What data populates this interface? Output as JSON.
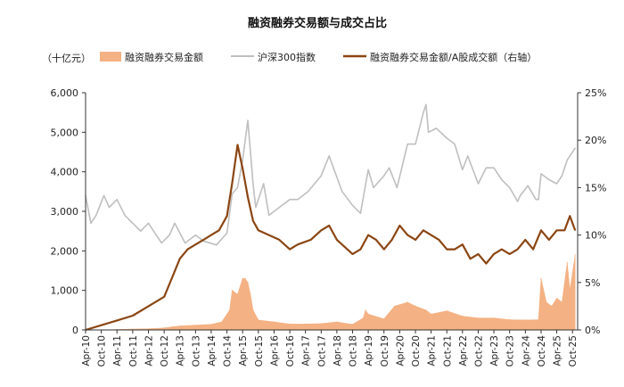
{
  "chart_data": {
    "type": "area",
    "title": "融资融券交易额与成交占比",
    "unit_left": "（十亿元）",
    "x_ticks": [
      "Apr-10",
      "Oct-10",
      "Apr-11",
      "Oct-11",
      "Apr-12",
      "Oct-12",
      "Apr-13",
      "Oct-13",
      "Apr-14",
      "Oct-14",
      "Apr-15",
      "Oct-15",
      "Apr-16",
      "Oct-16",
      "Apr-17",
      "Oct-17",
      "Apr-18",
      "Oct-18",
      "Apr-19",
      "Oct-19",
      "Apr-20",
      "Oct-20",
      "Apr-21",
      "Oct-21",
      "Apr-22",
      "Oct-22",
      "Apr-23",
      "Oct-23",
      "Apr-24",
      "Oct-24",
      "Apr-25",
      "Oct-25"
    ],
    "y_left": {
      "min": 0,
      "max": 6000,
      "ticks": [
        "0",
        "1,000",
        "2,000",
        "3,000",
        "4,000",
        "5,000",
        "6,000"
      ]
    },
    "y_right": {
      "min": 0,
      "max": 25,
      "ticks": [
        "0%",
        "5%",
        "10%",
        "15%",
        "20%",
        "25%"
      ]
    },
    "grid": false,
    "legend_position": "top",
    "series": [
      {
        "name": "融资融券交易金额",
        "type": "area",
        "axis": "left",
        "color": "#f4b183",
        "x": [
          "2010-04",
          "2010-10",
          "2011-04",
          "2011-10",
          "2012-04",
          "2012-10",
          "2013-01",
          "2013-04",
          "2013-10",
          "2014-04",
          "2014-08",
          "2014-11",
          "2014-12",
          "2015-02",
          "2015-04",
          "2015-05",
          "2015-06",
          "2015-07",
          "2015-08",
          "2015-10",
          "2016-04",
          "2016-10",
          "2017-04",
          "2017-10",
          "2018-04",
          "2018-10",
          "2019-02",
          "2019-03",
          "2019-04",
          "2019-10",
          "2020-02",
          "2020-07",
          "2020-10",
          "2021-02",
          "2021-04",
          "2021-10",
          "2022-04",
          "2022-10",
          "2023-04",
          "2023-10",
          "2024-04",
          "2024-09",
          "2024-10",
          "2024-12",
          "2025-02",
          "2025-04",
          "2025-06",
          "2025-08",
          "2025-09",
          "2025-11"
        ],
        "values": [
          0,
          5,
          10,
          20,
          30,
          50,
          80,
          100,
          120,
          140,
          200,
          500,
          1000,
          900,
          1300,
          1300,
          1200,
          900,
          500,
          250,
          200,
          150,
          150,
          160,
          200,
          140,
          300,
          500,
          400,
          280,
          600,
          700,
          600,
          500,
          400,
          480,
          350,
          300,
          300,
          260,
          250,
          260,
          1300,
          700,
          600,
          800,
          700,
          1700,
          1000,
          1900
        ]
      },
      {
        "name": "沪深300指数",
        "type": "line",
        "axis": "left",
        "color": "#bfbfbf",
        "x": [
          "2010-04",
          "2010-06",
          "2010-08",
          "2010-11",
          "2011-01",
          "2011-04",
          "2011-07",
          "2011-10",
          "2012-01",
          "2012-04",
          "2012-07",
          "2012-09",
          "2012-12",
          "2013-02",
          "2013-06",
          "2013-10",
          "2014-01",
          "2014-06",
          "2014-10",
          "2014-12",
          "2015-02",
          "2015-04",
          "2015-06",
          "2015-08",
          "2015-09",
          "2015-12",
          "2016-02",
          "2016-06",
          "2016-10",
          "2017-01",
          "2017-05",
          "2017-10",
          "2018-01",
          "2018-06",
          "2018-10",
          "2019-01",
          "2019-04",
          "2019-06",
          "2019-10",
          "2019-12",
          "2020-03",
          "2020-07",
          "2020-10",
          "2021-01",
          "2021-02",
          "2021-03",
          "2021-06",
          "2021-10",
          "2022-01",
          "2022-04",
          "2022-06",
          "2022-10",
          "2023-01",
          "2023-04",
          "2023-07",
          "2023-10",
          "2024-01",
          "2024-02",
          "2024-05",
          "2024-08",
          "2024-09",
          "2024-10",
          "2025-01",
          "2025-04",
          "2025-06",
          "2025-08",
          "2025-11"
        ],
        "values": [
          3400,
          2700,
          2900,
          3400,
          3100,
          3300,
          2900,
          2700,
          2500,
          2700,
          2400,
          2200,
          2400,
          2700,
          2200,
          2400,
          2250,
          2150,
          2450,
          3450,
          3600,
          4300,
          5300,
          3700,
          3100,
          3700,
          2900,
          3100,
          3300,
          3300,
          3500,
          3900,
          4400,
          3500,
          3150,
          2950,
          4050,
          3600,
          3900,
          4100,
          3600,
          4700,
          4700,
          5500,
          5700,
          5000,
          5100,
          4850,
          4700,
          4050,
          4400,
          3700,
          4100,
          4100,
          3800,
          3600,
          3250,
          3400,
          3650,
          3300,
          3300,
          3950,
          3800,
          3700,
          3900,
          4300,
          4600
        ]
      },
      {
        "name": "融资融券交易金额/A股成交额（右轴）",
        "type": "line",
        "axis": "right",
        "color": "#8b4513",
        "x": [
          "2010-04",
          "2010-10",
          "2011-04",
          "2011-10",
          "2012-04",
          "2012-10",
          "2013-01",
          "2013-04",
          "2013-07",
          "2013-10",
          "2014-01",
          "2014-04",
          "2014-07",
          "2014-10",
          "2014-12",
          "2015-02",
          "2015-04",
          "2015-06",
          "2015-08",
          "2015-10",
          "2016-02",
          "2016-06",
          "2016-10",
          "2017-01",
          "2017-06",
          "2017-10",
          "2018-01",
          "2018-04",
          "2018-10",
          "2019-01",
          "2019-04",
          "2019-07",
          "2019-10",
          "2020-01",
          "2020-04",
          "2020-07",
          "2020-10",
          "2021-01",
          "2021-04",
          "2021-07",
          "2021-10",
          "2022-01",
          "2022-04",
          "2022-07",
          "2022-10",
          "2023-01",
          "2023-04",
          "2023-07",
          "2023-10",
          "2024-01",
          "2024-04",
          "2024-07",
          "2024-10",
          "2025-01",
          "2025-04",
          "2025-07",
          "2025-09",
          "2025-11"
        ],
        "values": [
          0,
          0.5,
          1.0,
          1.5,
          2.5,
          3.5,
          5.5,
          7.5,
          8.5,
          9.0,
          9.5,
          10.0,
          10.5,
          12.0,
          15.5,
          19.5,
          17.0,
          14.0,
          11.5,
          10.5,
          10.0,
          9.5,
          8.5,
          9.0,
          9.5,
          10.5,
          11.0,
          9.5,
          8.0,
          8.5,
          10.0,
          9.5,
          8.5,
          9.5,
          11.0,
          10.0,
          9.5,
          10.5,
          10.0,
          9.5,
          8.5,
          8.5,
          9.0,
          7.5,
          8.0,
          7.0,
          8.0,
          8.5,
          8.0,
          8.5,
          9.5,
          8.5,
          10.5,
          9.5,
          10.5,
          10.5,
          12.0,
          10.5
        ]
      }
    ]
  }
}
